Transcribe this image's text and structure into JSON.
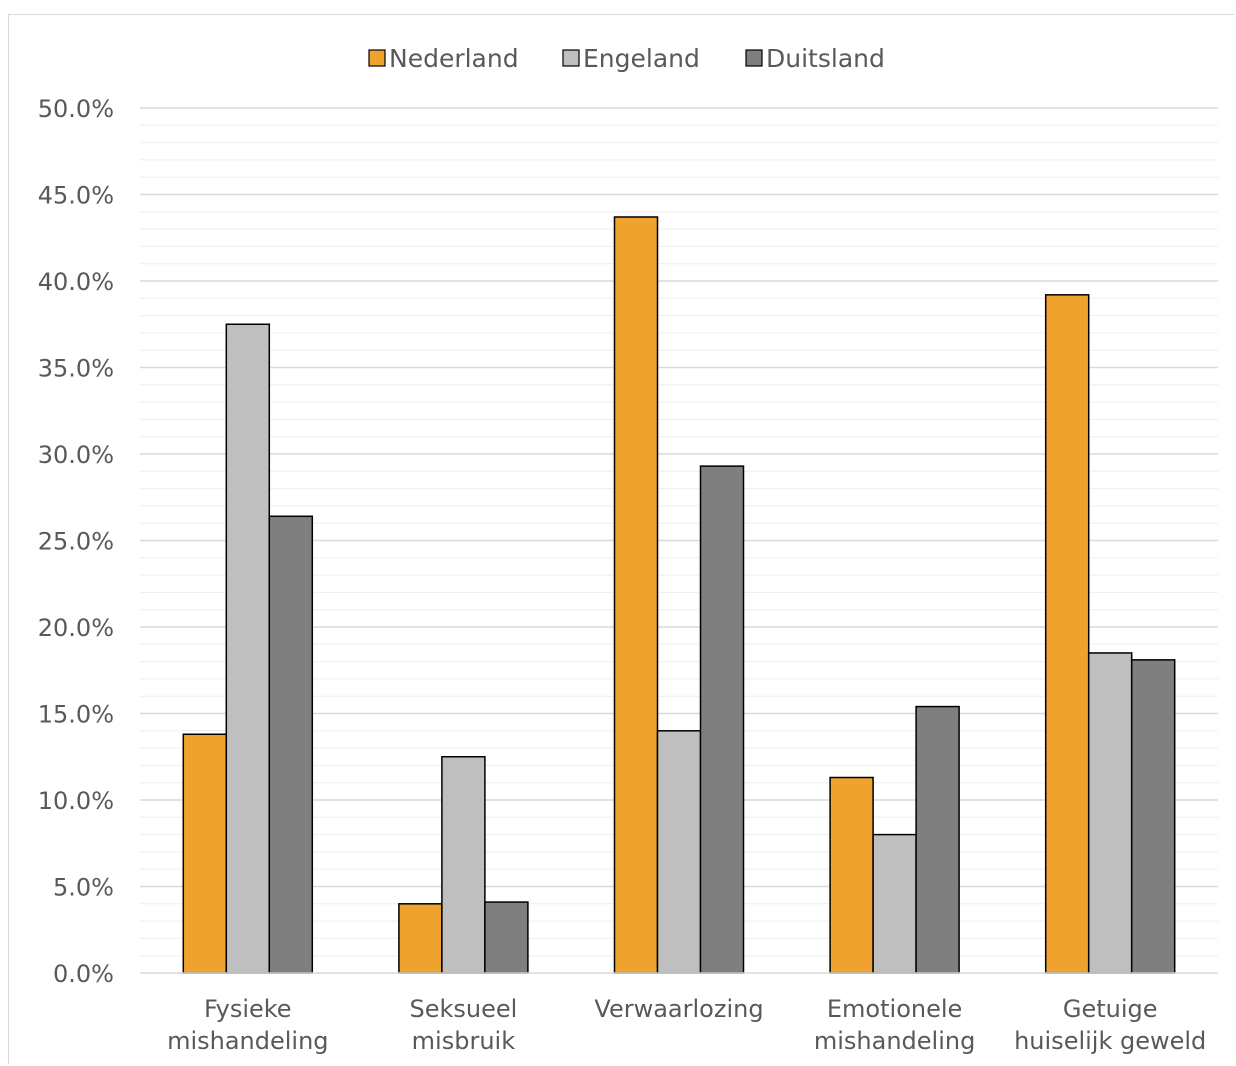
{
  "chart_data": {
    "type": "bar",
    "title": "",
    "xlabel": "",
    "ylabel": "",
    "ylim": [
      0,
      50
    ],
    "y_major_step": 5,
    "y_minor_step": 1,
    "y_tick_format": "percent_1dp",
    "grid": true,
    "legend_position": "top",
    "categories": [
      [
        "Fysieke",
        "mishandeling"
      ],
      [
        "Seksueel",
        "misbruik"
      ],
      [
        "Verwaarlozing"
      ],
      [
        "Emotionele",
        "mishandeling"
      ],
      [
        "Getuige",
        "huiselijk geweld"
      ]
    ],
    "series": [
      {
        "name": "Nederland",
        "color": "#f0a22e",
        "values": [
          13.8,
          4.0,
          43.7,
          11.3,
          39.2
        ]
      },
      {
        "name": "Engeland",
        "color": "#bfbfbf",
        "values": [
          37.5,
          12.5,
          14.0,
          8.0,
          18.5
        ]
      },
      {
        "name": "Duitsland",
        "color": "#7f7f7f",
        "values": [
          26.4,
          4.1,
          29.3,
          15.4,
          18.1
        ]
      }
    ]
  }
}
